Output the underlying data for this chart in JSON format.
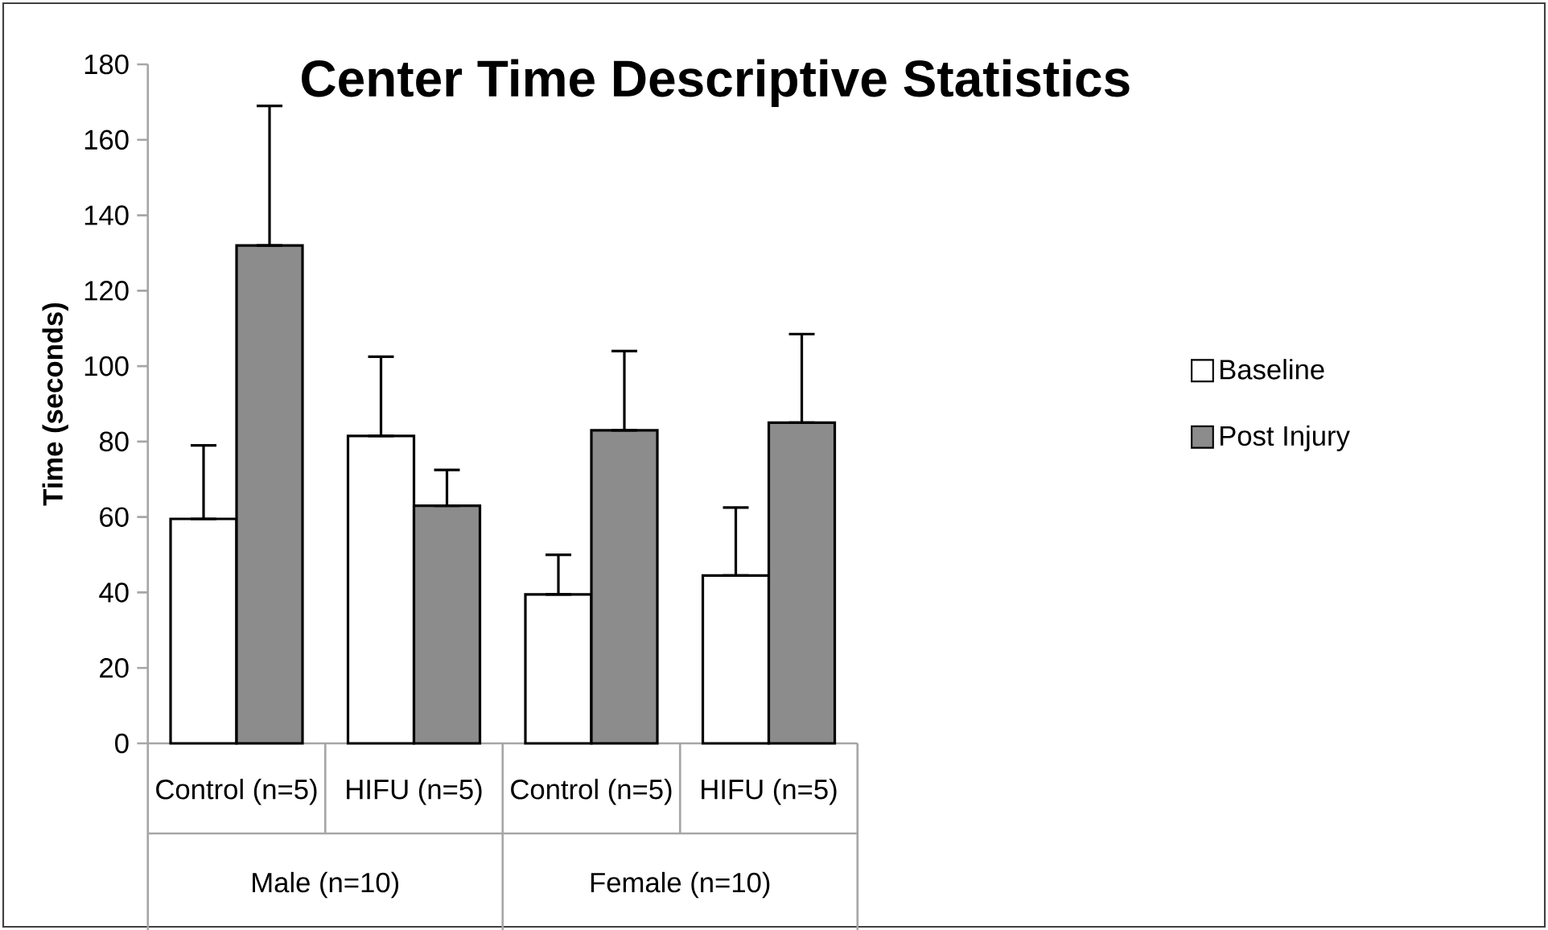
{
  "chart_data": {
    "type": "bar",
    "title": "Center Time Descriptive Statistics",
    "ylabel": "Time (seconds)",
    "categories": [
      "Control (n=5)",
      "HIFU (n=5)",
      "Control (n=5)",
      "HIFU (n=5)"
    ],
    "series": [
      {
        "name": "Baseline",
        "color": "#ffffff",
        "values": [
          59.5,
          81.5,
          39.5,
          44.5
        ],
        "errors": [
          [
            59.5,
            79
          ],
          [
            81.5,
            102.5
          ],
          [
            39.5,
            50
          ],
          [
            44.5,
            62.5
          ]
        ]
      },
      {
        "name": "Post Injury",
        "color": "#8c8c8c",
        "values": [
          132,
          63,
          83,
          85
        ],
        "errors": [
          [
            132,
            169
          ],
          [
            63,
            72.5
          ],
          [
            83,
            104
          ],
          [
            85,
            108.5
          ]
        ]
      }
    ],
    "annotations": [
      "Male (n=10)",
      "Female (n=10)"
    ],
    "ylim": [
      0,
      180
    ],
    "yticks": [
      0,
      20,
      40,
      60,
      80,
      100,
      120,
      140,
      160,
      180
    ],
    "legend": "right",
    "grid": false
  }
}
